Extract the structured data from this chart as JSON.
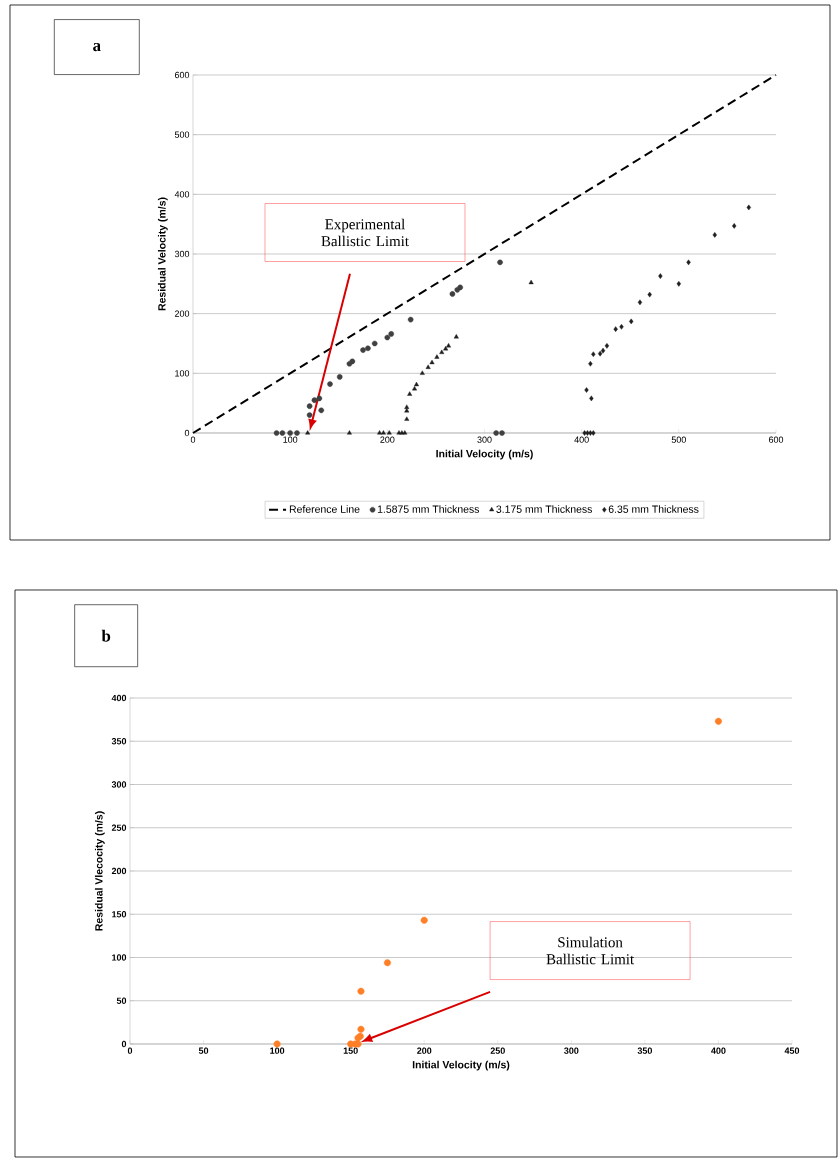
{
  "chart_data": [
    {
      "type": "scatter",
      "xlabel": "Initial Velocity (m/s)",
      "ylabel": "Residual Velocity (m/s)",
      "xlim": [
        0,
        600
      ],
      "xticks": [
        0,
        100,
        200,
        300,
        400,
        500,
        600
      ],
      "ylim": [
        0,
        600
      ],
      "yticks": [
        0,
        100,
        200,
        300,
        400,
        500,
        600
      ],
      "grid": "y",
      "legend": "bottom",
      "annotations": [
        "a",
        "Experimental Ballistic Limit"
      ],
      "series": [
        {
          "name": "Reference Line",
          "type": "line",
          "line_style": "dashed",
          "marker": "none",
          "color": "#000000",
          "x": [
            0,
            600
          ],
          "values": [
            0,
            600
          ]
        },
        {
          "name": "1.5875 mm Thickness",
          "marker": "circle",
          "color": "#404040",
          "x": [
            86,
            92,
            100,
            107,
            312,
            318,
            120,
            120,
            125,
            130,
            132,
            141,
            151,
            161,
            164,
            175,
            180,
            187,
            200,
            204,
            224,
            267,
            272,
            275,
            316
          ],
          "values": [
            0,
            0,
            0,
            0,
            0,
            0,
            30,
            45,
            55,
            58,
            38,
            82,
            94,
            116,
            120,
            139,
            142,
            150,
            160,
            166,
            190,
            233,
            240,
            244,
            286
          ]
        },
        {
          "name": "3.175 mm Thickness",
          "marker": "triangle",
          "color": "#202020",
          "x": [
            118,
            161,
            192,
            196,
            202,
            212,
            215,
            218,
            220,
            220,
            220,
            223,
            228,
            230,
            236,
            242,
            246,
            251,
            256,
            260,
            263,
            271,
            348
          ],
          "values": [
            0,
            0,
            0,
            0,
            0,
            0,
            0,
            0,
            23,
            37,
            43,
            65,
            74,
            81,
            100,
            110,
            118,
            127,
            135,
            141,
            146,
            161,
            252
          ]
        },
        {
          "name": "6.35 mm Thickness",
          "marker": "diamond",
          "color": "#202020",
          "x": [
            403,
            406,
            409,
            412,
            405,
            410,
            409,
            412,
            419,
            422,
            426,
            435,
            441,
            451,
            460,
            470,
            481,
            500,
            510,
            537,
            557,
            572
          ],
          "values": [
            0,
            0,
            0,
            0,
            72,
            58,
            116,
            132,
            133,
            138,
            146,
            174,
            178,
            187,
            219,
            232,
            263,
            250,
            286,
            332,
            347,
            378
          ]
        }
      ]
    },
    {
      "type": "scatter",
      "xlabel": "Initial Velocity (m/s)",
      "ylabel": "Residual Vlecocity (m/s)",
      "xlim": [
        0,
        450
      ],
      "xticks": [
        0,
        50,
        100,
        150,
        200,
        250,
        300,
        350,
        400,
        450
      ],
      "ylim": [
        0,
        400
      ],
      "yticks": [
        0,
        50,
        100,
        150,
        200,
        250,
        300,
        350,
        400
      ],
      "grid": "y",
      "annotations": [
        "b",
        "Simulation Ballistic Limit"
      ],
      "series": [
        {
          "color": "#ff7f27",
          "marker": "circle",
          "x": [
            100,
            150,
            153,
            155,
            155,
            156.5,
            157,
            157,
            175,
            200,
            400
          ],
          "values": [
            0,
            0,
            0,
            0,
            7,
            9,
            17,
            61,
            94,
            143,
            373
          ]
        }
      ]
    }
  ]
}
